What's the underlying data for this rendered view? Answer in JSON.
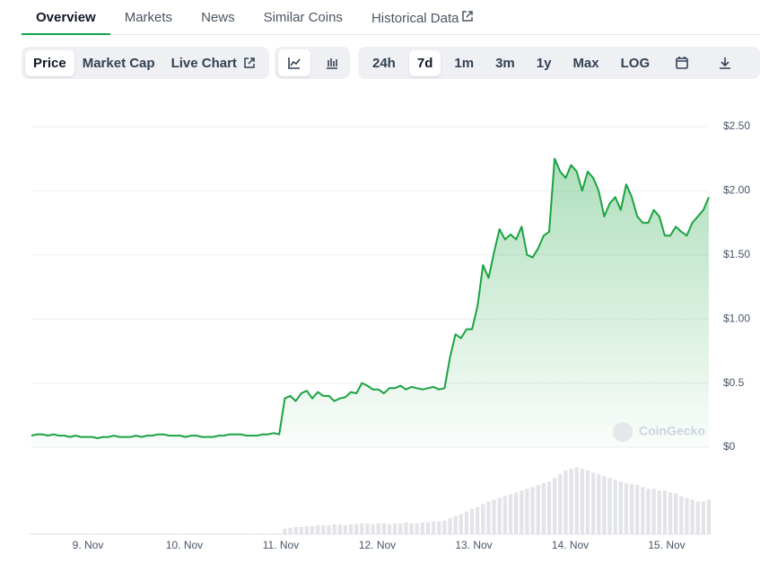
{
  "tabs": {
    "items": [
      "Overview",
      "Markets",
      "News",
      "Similar Coins",
      "Historical Data"
    ],
    "active": 0
  },
  "toolbar": {
    "views": [
      "Price",
      "Market Cap",
      "Live Chart"
    ],
    "active_view": 0,
    "ranges": [
      "24h",
      "7d",
      "1m",
      "3m",
      "1y",
      "Max",
      "LOG"
    ],
    "active_range": 1
  },
  "watermark": "CoinGecko",
  "chart_data": {
    "type": "area",
    "color": "#1aa340",
    "values": [
      0.09,
      0.1,
      0.1,
      0.09,
      0.1,
      0.09,
      0.09,
      0.08,
      0.09,
      0.08,
      0.08,
      0.08,
      0.07,
      0.08,
      0.08,
      0.09,
      0.08,
      0.08,
      0.08,
      0.09,
      0.08,
      0.09,
      0.09,
      0.1,
      0.1,
      0.09,
      0.09,
      0.09,
      0.08,
      0.09,
      0.09,
      0.08,
      0.08,
      0.08,
      0.09,
      0.09,
      0.1,
      0.1,
      0.1,
      0.09,
      0.09,
      0.09,
      0.1,
      0.1,
      0.11,
      0.1,
      0.38,
      0.4,
      0.36,
      0.42,
      0.44,
      0.38,
      0.43,
      0.4,
      0.4,
      0.36,
      0.38,
      0.39,
      0.43,
      0.42,
      0.5,
      0.48,
      0.45,
      0.45,
      0.42,
      0.46,
      0.46,
      0.48,
      0.45,
      0.47,
      0.46,
      0.45,
      0.46,
      0.47,
      0.45,
      0.46,
      0.7,
      0.88,
      0.85,
      0.92,
      0.92,
      1.1,
      1.42,
      1.32,
      1.52,
      1.7,
      1.62,
      1.66,
      1.62,
      1.72,
      1.5,
      1.48,
      1.55,
      1.65,
      1.68,
      2.25,
      2.15,
      2.1,
      2.2,
      2.15,
      2.0,
      2.15,
      2.1,
      2.0,
      1.8,
      1.9,
      1.95,
      1.85,
      2.05,
      1.95,
      1.8,
      1.75,
      1.75,
      1.85,
      1.8,
      1.65,
      1.65,
      1.72,
      1.68,
      1.65,
      1.75,
      1.8,
      1.85,
      1.95
    ],
    "volume": [
      1,
      1,
      1,
      1,
      1,
      1,
      1,
      1,
      1,
      1,
      1,
      1,
      1,
      1,
      1,
      1,
      1,
      1,
      1,
      1,
      1,
      1,
      1,
      1,
      1,
      1,
      1,
      1,
      1,
      1,
      1,
      1,
      1,
      1,
      1,
      1,
      1,
      1,
      1,
      1,
      1,
      1,
      1,
      1,
      1,
      1,
      6,
      7,
      8,
      8,
      9,
      9,
      10,
      10,
      10,
      11,
      11,
      10,
      11,
      11,
      12,
      12,
      11,
      12,
      12,
      11,
      12,
      12,
      13,
      12,
      12,
      13,
      13,
      14,
      14,
      15,
      18,
      20,
      22,
      25,
      28,
      30,
      33,
      36,
      38,
      40,
      42,
      44,
      46,
      48,
      50,
      52,
      54,
      56,
      58,
      62,
      66,
      70,
      72,
      74,
      72,
      70,
      68,
      66,
      64,
      62,
      60,
      58,
      56,
      55,
      54,
      52,
      50,
      50,
      48,
      48,
      46,
      45,
      42,
      40,
      38,
      36,
      36,
      38
    ],
    "xtick_labels": [
      "9. Nov",
      "10. Nov",
      "11. Nov",
      "12. Nov",
      "13. Nov",
      "14. Nov",
      "15. Nov"
    ],
    "ylim": [
      0,
      2.5
    ],
    "yticks": [
      {
        "value": 0,
        "label": "$0"
      },
      {
        "value": 0.5,
        "label": "$0.5"
      },
      {
        "value": 1,
        "label": "$1.00"
      },
      {
        "value": 1.5,
        "label": "$1.50"
      },
      {
        "value": 2,
        "label": "$2.00"
      },
      {
        "value": 2.5,
        "label": "$2.50"
      }
    ],
    "grid": true
  }
}
